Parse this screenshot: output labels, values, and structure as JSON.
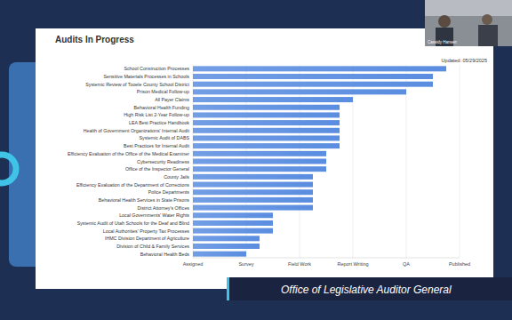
{
  "chart_data": {
    "type": "bar",
    "orientation": "horizontal",
    "title": "Audits In Progress",
    "subtitle": "Updated: 05/29/2025",
    "categories": [
      "School Construction Processes",
      "Sensitive Materials Processes in Schools",
      "Systemic Review of Tooele County School District",
      "Prison Medical Follow-up",
      "All Payer Claims",
      "Behavioral Health Funding",
      "High Risk List 2-Year Follow-up",
      "LEA Best Practice Handbook",
      "Health of Government Organizations' Internal Audit",
      "Systemic Audit of DABS",
      "Best Practices for Internal Audit",
      "Efficiency Evaluation of the Office of the Medical Examiner",
      "Cybersecurity Readiness",
      "Office of the Inspector General",
      "County Jails",
      "Efficiency Evaluation of the Department of Corrections",
      "Police Departments",
      "Behavioral Health Services in State Prisons",
      "District Attorney's Offices",
      "Local Governments' Water Rights",
      "Systemic Audit of Utah Schools for the Deaf and Blind",
      "Local Authorities' Property Tax Processes",
      "IHMC Division Department of Agriculture",
      "Division of Child & Family Services",
      "Behavioral Health Beds"
    ],
    "values": [
      4.75,
      4.5,
      4.5,
      4,
      3,
      2.75,
      2.75,
      2.75,
      2.75,
      2.75,
      2.75,
      2.5,
      2.5,
      2.5,
      2.25,
      2.25,
      2.25,
      2.25,
      2.25,
      1.5,
      1.5,
      1.5,
      1.25,
      1.25,
      1
    ],
    "color": "#5a8de0",
    "xlim": [
      0,
      5
    ],
    "xticks": [
      {
        "value": 0,
        "label": "Assigned"
      },
      {
        "value": 1,
        "label": "Survey"
      },
      {
        "value": 2,
        "label": "Field Work"
      },
      {
        "value": 3,
        "label": "Report Writing"
      },
      {
        "value": 4,
        "label": "QA"
      },
      {
        "value": 5,
        "label": "Published"
      }
    ],
    "grid": true
  },
  "banner": {
    "text": "Office of Legislative Auditor General"
  },
  "video": {
    "name": "Cassidy Hansen"
  }
}
